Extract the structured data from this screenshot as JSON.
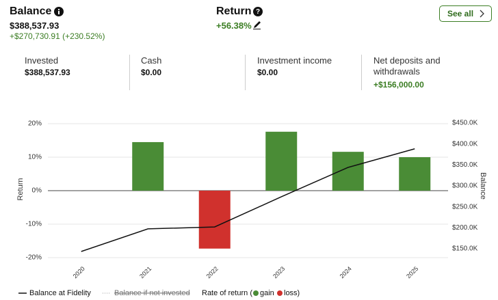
{
  "header": {
    "balance": {
      "title": "Balance",
      "value": "$388,537.93",
      "change": "+$270,730.91 (+230.52%)"
    },
    "return": {
      "title": "Return",
      "value": "+56.38%"
    },
    "see_all": "See all"
  },
  "stats": [
    {
      "label": "Invested",
      "value": "$388,537.93"
    },
    {
      "label": "Cash",
      "value": "$0.00"
    },
    {
      "label": "Investment income",
      "value": "$0.00"
    },
    {
      "label": "Net deposits and withdrawals",
      "value": "+$156,000.00"
    }
  ],
  "chart_data": {
    "type": "bar_line",
    "categories": [
      "2020",
      "2021",
      "2022",
      "2023",
      "2024",
      "2025"
    ],
    "ylabel": "Return",
    "y2label": "Balance",
    "ylim": [
      -20,
      20
    ],
    "yticks": [
      {
        "value": 20,
        "label": "20%"
      },
      {
        "value": 10,
        "label": "10%"
      },
      {
        "value": 0,
        "label": "0%"
      },
      {
        "value": -10,
        "label": "-10%"
      },
      {
        "value": -20,
        "label": "-20%"
      }
    ],
    "y2lim": [
      150000,
      450000
    ],
    "y2ticks": [
      {
        "value": 450000,
        "label": "$450.0K"
      },
      {
        "value": 400000,
        "label": "$400.0K"
      },
      {
        "value": 350000,
        "label": "$350.0K"
      },
      {
        "value": 300000,
        "label": "$300.0K"
      },
      {
        "value": 250000,
        "label": "$250.0K"
      },
      {
        "value": 200000,
        "label": "$200.0K"
      },
      {
        "value": 150000,
        "label": "$150.0K"
      }
    ],
    "series": [
      {
        "name": "Balance at Fidelity",
        "type": "line",
        "axis": "y2",
        "color": "#111111",
        "values": [
          143500,
          197400,
          202000,
          274000,
          344000,
          388500
        ]
      },
      {
        "name": "Rate of return",
        "type": "bar",
        "values": [
          null,
          14.5,
          -17.3,
          17.6,
          11.6,
          10.0
        ]
      }
    ],
    "colors": {
      "gain": "#4a8c36",
      "loss": "#d0312d"
    },
    "legend": {
      "balance": "Balance at Fidelity",
      "not_invested": "Balance if not invested",
      "rate": "Rate of return (",
      "gain": "gain",
      "loss": "loss)"
    }
  }
}
